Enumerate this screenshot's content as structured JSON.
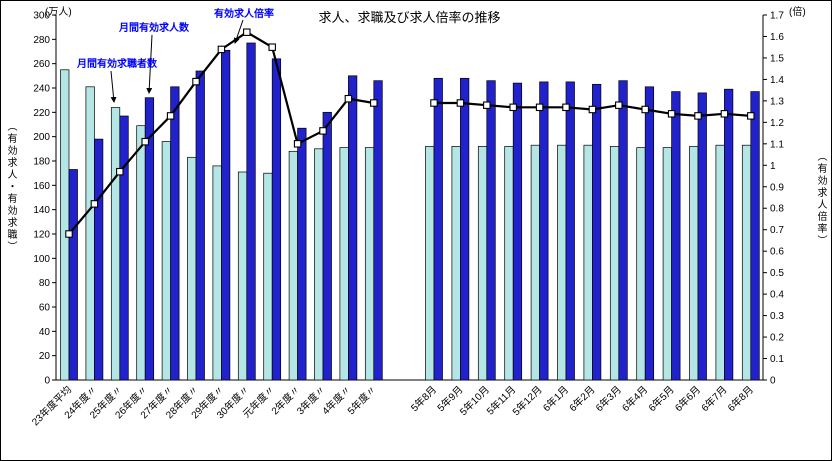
{
  "title": "求人、求職及び求人倍率の推移",
  "chart_data": {
    "type": "bar+line",
    "title": "求人、求職及び求人倍率の推移",
    "categories": [
      "23年度平均",
      "24年度〃",
      "25年度〃",
      "26年度〃",
      "27年度〃",
      "28年度〃",
      "29年度〃",
      "30年度〃",
      "元年度〃",
      "2年度〃",
      "3年度〃",
      "4年度〃",
      "5年度〃",
      "5年8月",
      "5年9月",
      "5年10月",
      "5年11月",
      "5年12月",
      "6年1月",
      "6年2月",
      "6年3月",
      "6年4月",
      "6年5月",
      "6年6月",
      "6年7月",
      "6年8月"
    ],
    "gap_after_index": 12,
    "bar_series": [
      {
        "name": "月間有効求職者数",
        "color": "#b5e6e6",
        "axis": "left",
        "values": [
          255,
          241,
          224,
          209,
          196,
          183,
          176,
          171,
          170,
          188,
          190,
          191,
          191,
          192,
          192,
          192,
          192,
          193,
          193,
          193,
          192,
          191,
          191,
          192,
          193,
          193
        ]
      },
      {
        "name": "月間有効求人数",
        "color": "#2222cc",
        "axis": "left",
        "values": [
          173,
          198,
          217,
          232,
          241,
          254,
          271,
          277,
          264,
          207,
          220,
          250,
          246,
          248,
          248,
          246,
          244,
          245,
          245,
          243,
          246,
          241,
          237,
          236,
          239,
          237
        ]
      }
    ],
    "line_series": [
      {
        "name": "有効求人倍率",
        "color": "#000000",
        "axis": "right",
        "marker": "square",
        "values": [
          0.68,
          0.82,
          0.97,
          1.11,
          1.23,
          1.39,
          1.54,
          1.62,
          1.55,
          1.1,
          1.16,
          1.31,
          1.29,
          1.29,
          1.29,
          1.28,
          1.27,
          1.27,
          1.27,
          1.26,
          1.28,
          1.26,
          1.24,
          1.23,
          1.24,
          1.23
        ]
      }
    ],
    "left_axis": {
      "min": 0,
      "max": 300,
      "unit": "(万人)",
      "label": "（有効求人・有効求職）",
      "ticks": [
        "0",
        "20",
        "40",
        "60",
        "80",
        "100",
        "120",
        "140",
        "160",
        "180",
        "200",
        "220",
        "240",
        "260",
        "280",
        "300"
      ]
    },
    "right_axis": {
      "min": 0,
      "max": 1.7,
      "unit": "(倍)",
      "label": "（有効求人倍率）",
      "ticks": [
        "0",
        "0.1",
        "0.2",
        "0.3",
        "0.4",
        "0.5",
        "0.6",
        "0.7",
        "0.8",
        "0.9",
        "1",
        "1.1",
        "1.2",
        "1.3",
        "1.4",
        "1.5",
        "1.6",
        "1.7"
      ]
    },
    "annotations": [
      {
        "label": "月間有効求人数",
        "series": "月間有効求人数",
        "index": 3
      },
      {
        "label": "月間有効求職者数",
        "series": "月間有効求職者数",
        "index": 2
      },
      {
        "label": "有効求人倍率",
        "series": "有効求人倍率",
        "index": 6
      }
    ],
    "legend_position": "none",
    "grid": false
  }
}
